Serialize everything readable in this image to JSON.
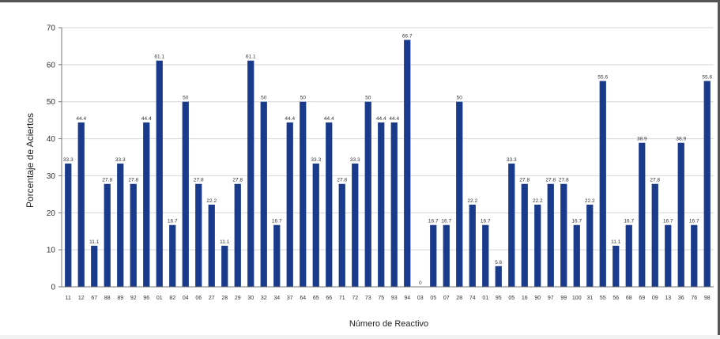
{
  "chart_data": {
    "type": "bar",
    "xlabel": "Número de Reactivo",
    "ylabel": "Porcentaje de Aciertos",
    "ylim": [
      0,
      70
    ],
    "yticks": [
      0,
      10,
      20,
      30,
      40,
      50,
      60,
      70
    ],
    "grid": true,
    "legend": "none",
    "bar_color": "#1a3a8c",
    "categories": [
      "11",
      "12",
      "67",
      "88",
      "89",
      "92",
      "96",
      "01",
      "82",
      "04",
      "06",
      "27",
      "28",
      "29",
      "30",
      "32",
      "34",
      "37",
      "64",
      "65",
      "66",
      "71",
      "72",
      "73",
      "75",
      "93",
      "94",
      "03",
      "05",
      "07",
      "28",
      "74",
      "01",
      "95",
      "05",
      "16",
      "90",
      "97",
      "99",
      "100",
      "31",
      "55",
      "56",
      "68",
      "69",
      "09",
      "13",
      "36",
      "76",
      "98"
    ],
    "values": [
      33.3,
      44.4,
      11.1,
      27.8,
      33.3,
      27.8,
      44.4,
      61.1,
      16.7,
      50,
      27.8,
      22.2,
      11.1,
      27.8,
      61.1,
      50,
      16.7,
      44.4,
      50,
      33.3,
      44.4,
      27.8,
      33.3,
      50,
      44.4,
      44.4,
      66.7,
      0,
      16.7,
      16.7,
      50,
      22.2,
      16.7,
      5.6,
      33.3,
      27.8,
      22.2,
      27.8,
      27.8,
      16.7,
      22.2,
      55.6,
      11.1,
      16.7,
      38.9,
      27.8,
      16.7,
      38.9,
      16.7,
      55.6
    ],
    "value_labels": [
      "33.3",
      "44.4",
      "11.1",
      "27.8",
      "33.3",
      "27.8",
      "44.4",
      "61.1",
      "16.7",
      "50",
      "27.8",
      "22.2",
      "11.1",
      "27.8",
      "61.1",
      "50",
      "16.7",
      "44.4",
      "50",
      "33.3",
      "44.4",
      "27.8",
      "33.3",
      "50",
      "44.4",
      "44.4",
      "66.7",
      "0",
      "16.7",
      "16.7",
      "50",
      "22.2",
      "16.7",
      "5.6",
      "33.3",
      "27.8",
      "22.2",
      "27.8",
      "27.8",
      "16.7",
      "22.2",
      "55.6",
      "11.1",
      "16.7",
      "38.9",
      "27.8",
      "16.7",
      "38.9",
      "16.7",
      "55.6"
    ]
  }
}
